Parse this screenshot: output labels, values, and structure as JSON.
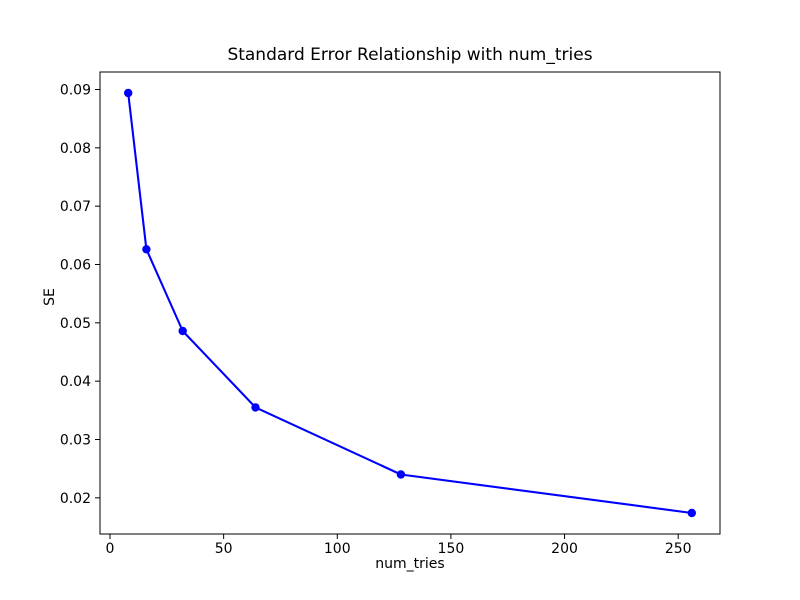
{
  "figure": {
    "background_color": "#ffffff",
    "spine_color": "#000000",
    "tick_color": "#000000",
    "text_color": "#000000"
  },
  "chart_data": {
    "type": "line",
    "title": "Standard Error Relationship with num_tries",
    "xlabel": "num_tries",
    "ylabel": "SE",
    "x": [
      8,
      16,
      32,
      64,
      128,
      256
    ],
    "series": [
      {
        "name": "SE",
        "values": [
          0.0894,
          0.0626,
          0.0486,
          0.0355,
          0.024,
          0.0174
        ]
      }
    ],
    "x_ticks": [
      0,
      50,
      100,
      150,
      200,
      250
    ],
    "y_ticks": [
      0.02,
      0.03,
      0.04,
      0.05,
      0.06,
      0.07,
      0.08,
      0.09
    ],
    "y_tick_decimals": 2,
    "xlim": [
      -4.4,
      268.4
    ],
    "ylim": [
      0.0138,
      0.093
    ],
    "line_color": "#0000ff",
    "marker": "o",
    "marker_size": 8.4,
    "line_width": 2.1,
    "grid": false,
    "legend_position": "none"
  }
}
